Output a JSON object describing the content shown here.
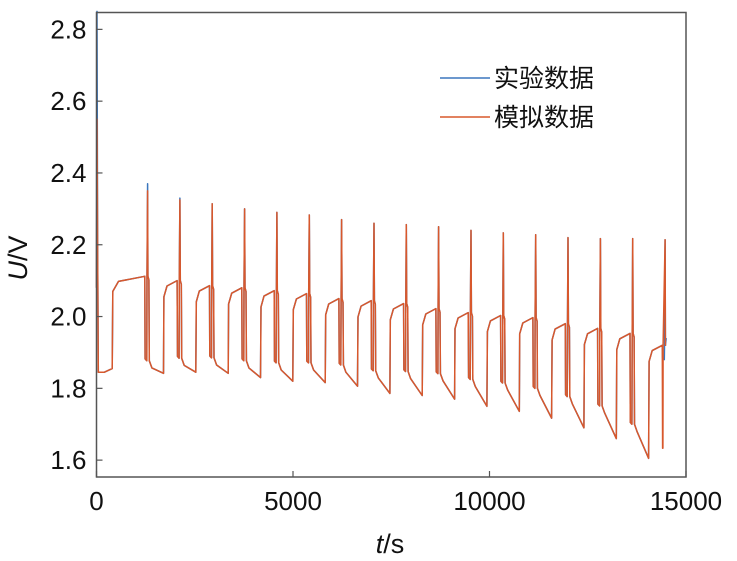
{
  "chart_data": {
    "type": "line",
    "title": "",
    "xlabel": {
      "var": "t",
      "unit": "/s"
    },
    "ylabel": {
      "var": "U",
      "unit": "/V"
    },
    "xlim": [
      0,
      15000
    ],
    "ylim": [
      1.553,
      2.847
    ],
    "xticks": [
      0,
      5000,
      10000,
      15000
    ],
    "xtick_labels": [
      "0",
      "5000",
      "10000",
      "15000"
    ],
    "yticks": [
      1.6,
      1.8,
      2.0,
      2.2,
      2.4,
      2.6,
      2.8
    ],
    "ytick_labels": [
      "1.6",
      "1.8",
      "2.0",
      "2.2",
      "2.4",
      "2.6",
      "2.8"
    ],
    "grid": false,
    "legend_position": "top-right",
    "colors": {
      "experiment": "#3b76bd",
      "simulation": "#d8582c",
      "frame": "#555555"
    },
    "series": [
      {
        "name": "实验数据",
        "initial_peak": 2.85,
        "peaks": [
          2.37,
          2.33,
          2.314,
          2.3,
          2.29,
          2.283,
          2.27,
          2.26,
          2.256,
          2.25,
          2.24,
          2.233,
          2.228,
          2.22,
          2.217,
          2.217,
          2.214
        ],
        "final_value": 1.94
      },
      {
        "name": "模拟数据",
        "initial_peak": 2.55,
        "peaks": [
          2.35,
          2.325,
          2.314,
          2.3,
          2.29,
          2.283,
          2.27,
          2.26,
          2.256,
          2.25,
          2.24,
          2.233,
          2.228,
          2.22,
          2.217,
          2.217,
          2.214
        ],
        "final_value": 1.633
      }
    ],
    "cycles": {
      "pulse_times": [
        1299,
        2122,
        2945,
        3768,
        4591,
        5414,
        6237,
        7060,
        7883,
        8706,
        9529,
        10352,
        11175,
        11998,
        12821,
        13644,
        14467
      ],
      "charge_end": [
        2.112,
        2.1,
        2.086,
        2.08,
        2.072,
        2.064,
        2.05,
        2.044,
        2.036,
        2.022,
        2.011,
        2.003,
        1.997,
        1.98,
        1.967,
        1.953,
        1.92
      ],
      "discharge_end": [
        1.842,
        1.845,
        1.842,
        1.83,
        1.82,
        1.816,
        1.806,
        1.786,
        1.78,
        1.77,
        1.75,
        1.736,
        1.717,
        1.69,
        1.66,
        1.605
      ],
      "initial_rest": 1.845,
      "discharge_duration": 405
    }
  }
}
